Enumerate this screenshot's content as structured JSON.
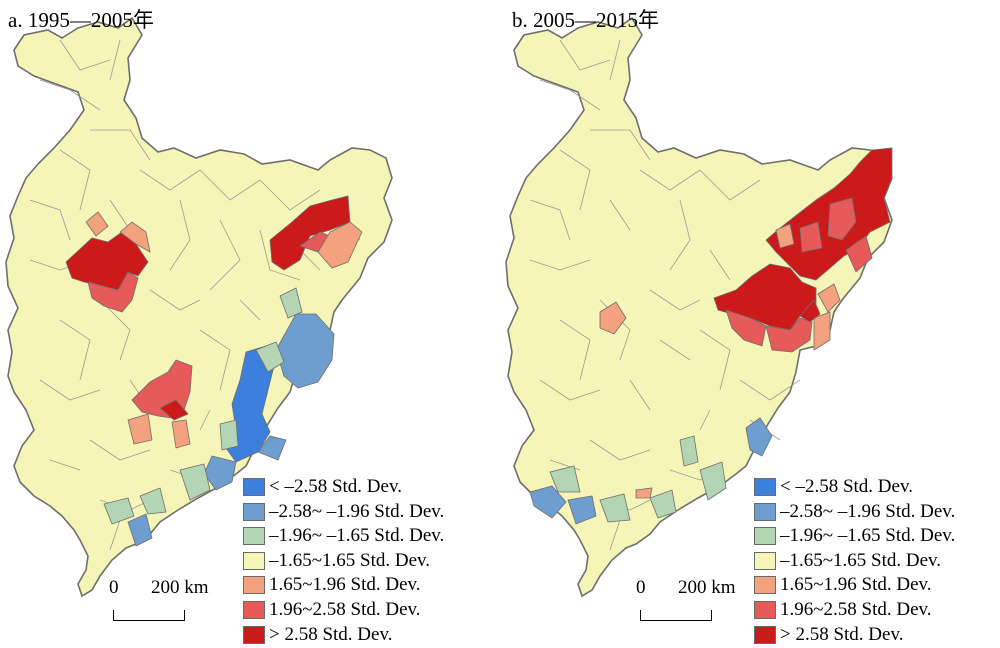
{
  "colors": {
    "background": "#ffffff",
    "base_fill": "#f5f5b8",
    "boundary": "#9a9a9a",
    "outline": "#6e6e6e",
    "classes": [
      "#3d7fdc",
      "#6e9ecf",
      "#b3d5b4",
      "#f5f5b8",
      "#f4a27e",
      "#e65a5a",
      "#cc1a1a"
    ]
  },
  "legend": [
    {
      "label": "< –2.58 Std. Dev.",
      "class": 0
    },
    {
      "label": "–2.58~ –1.96 Std. Dev.",
      "class": 1
    },
    {
      "label": "–1.96~ –1.65 Std. Dev.",
      "class": 2
    },
    {
      "label": "–1.65~1.65 Std. Dev.",
      "class": 3
    },
    {
      "label": "1.65~1.96 Std. Dev.",
      "class": 4
    },
    {
      "label": "1.96~2.58 Std. Dev.",
      "class": 5
    },
    {
      "label": "> 2.58 Std. Dev.",
      "class": 6
    }
  ],
  "scalebar": {
    "zero": "0",
    "distance": "200 km"
  },
  "panels": [
    {
      "id": "a",
      "title": "a. 1995—2005年",
      "clusters": [
        {
          "class": 6,
          "region": "west-central"
        },
        {
          "class": 5,
          "region": "west-central"
        },
        {
          "class": 4,
          "region": "west-central"
        },
        {
          "class": 6,
          "region": "northeast"
        },
        {
          "class": 5,
          "region": "northeast"
        },
        {
          "class": 4,
          "region": "northeast"
        },
        {
          "class": 6,
          "region": "south-central"
        },
        {
          "class": 5,
          "region": "south-central"
        },
        {
          "class": 4,
          "region": "south-central"
        },
        {
          "class": 0,
          "region": "southeast"
        },
        {
          "class": 1,
          "region": "southeast"
        },
        {
          "class": 2,
          "region": "southeast"
        },
        {
          "class": 1,
          "region": "southwest"
        },
        {
          "class": 2,
          "region": "southwest"
        }
      ]
    },
    {
      "id": "b",
      "title": "b. 2005—2015年",
      "clusters": [
        {
          "class": 6,
          "region": "northeast"
        },
        {
          "class": 5,
          "region": "northeast"
        },
        {
          "class": 4,
          "region": "northeast"
        },
        {
          "class": 6,
          "region": "central-east"
        },
        {
          "class": 5,
          "region": "central-east"
        },
        {
          "class": 4,
          "region": "west"
        },
        {
          "class": 1,
          "region": "southeast"
        },
        {
          "class": 1,
          "region": "southwest"
        },
        {
          "class": 2,
          "region": "southwest"
        },
        {
          "class": 2,
          "region": "south-central"
        },
        {
          "class": 4,
          "region": "south-central"
        }
      ]
    }
  ]
}
